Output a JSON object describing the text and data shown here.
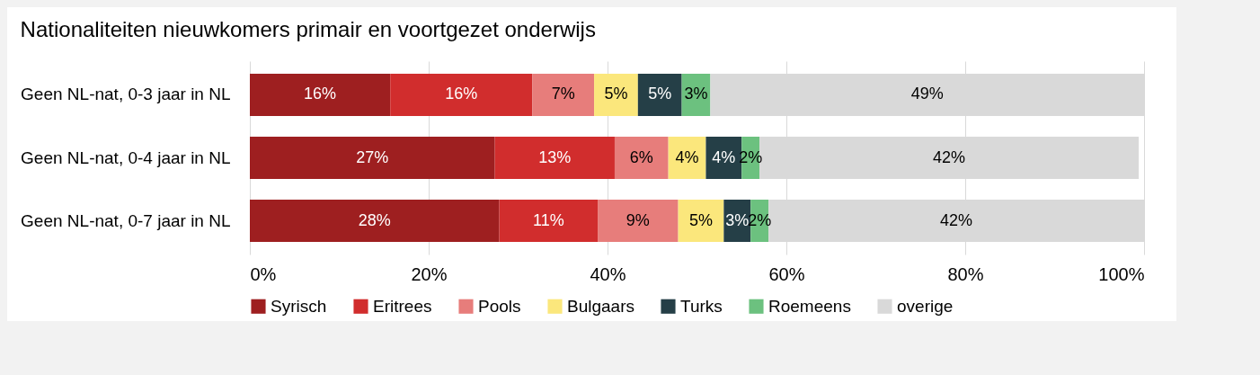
{
  "chart_data": {
    "type": "bar",
    "orientation": "horizontal",
    "stacked": true,
    "title": "Nationaliteiten nieuwkomers primair en voortgezet onderwijs",
    "categories": [
      "Geen NL-nat, 0-3 jaar in NL",
      "Geen NL-nat, 0-4 jaar in NL",
      "Geen NL-nat, 0-7 jaar in NL"
    ],
    "series": [
      {
        "name": "Syrisch",
        "color": "#9e1f20",
        "values": [
          15.7,
          27.4,
          27.9
        ],
        "value_labels": [
          "16%",
          "27%",
          "28%"
        ]
      },
      {
        "name": "Eritrees",
        "color": "#d12d2d",
        "values": [
          15.9,
          13.4,
          11.0
        ],
        "value_labels": [
          "16%",
          "13%",
          "11%"
        ]
      },
      {
        "name": "Pools",
        "color": "#e77d7b",
        "values": [
          6.9,
          6.0,
          9.0
        ],
        "value_labels": [
          "7%",
          "6%",
          "9%"
        ]
      },
      {
        "name": "Bulgaars",
        "color": "#fbe77c",
        "values": [
          4.9,
          4.2,
          5.1
        ],
        "value_labels": [
          "5%",
          "4%",
          "5%"
        ]
      },
      {
        "name": "Turks",
        "color": "#253f47",
        "values": [
          4.9,
          4.0,
          3.0
        ],
        "value_labels": [
          "5%",
          "4%",
          "3%"
        ]
      },
      {
        "name": "Roemeens",
        "color": "#6cc17f",
        "values": [
          3.2,
          2.0,
          2.0
        ],
        "value_labels": [
          "3%",
          "2%",
          "2%"
        ]
      },
      {
        "name": "overige",
        "color": "#d9d9d9",
        "values": [
          48.5,
          42.4,
          42.0
        ],
        "value_labels": [
          "49%",
          "42%",
          "42%"
        ]
      }
    ],
    "xlim": [
      0,
      100
    ],
    "xticks": [
      {
        "value": 0,
        "label": "0%"
      },
      {
        "value": 20,
        "label": "20%"
      },
      {
        "value": 40,
        "label": "40%"
      },
      {
        "value": 60,
        "label": "60%"
      },
      {
        "value": 80,
        "label": "80%"
      },
      {
        "value": 100,
        "label": "100%"
      }
    ],
    "grid": "x",
    "legend": "bottom"
  }
}
